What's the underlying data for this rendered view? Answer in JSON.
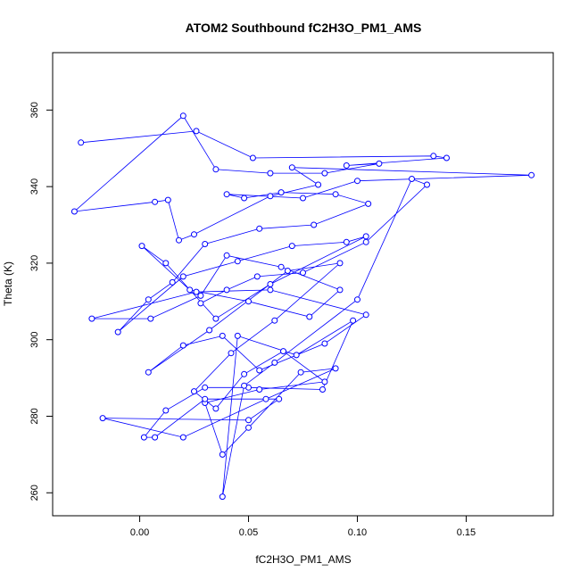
{
  "chart_data": {
    "type": "line",
    "title": "ATOM2 Southbound fC2H3O_PM1_AMS",
    "xlabel": "fC2H3O_PM1_AMS",
    "ylabel": "Theta (K)",
    "xlim": [
      -0.04,
      0.19
    ],
    "ylim": [
      254,
      375
    ],
    "xticks": [
      0.0,
      0.05,
      0.1,
      0.15
    ],
    "xtick_labels": [
      "0.00",
      "0.05",
      "0.10",
      "0.15"
    ],
    "yticks": [
      260,
      280,
      300,
      320,
      340,
      360
    ],
    "ytick_labels": [
      "260",
      "280",
      "300",
      "320",
      "340",
      "360"
    ],
    "grid": false,
    "line_color": "#0000ff",
    "marker": "open-circle",
    "series": [
      {
        "x": [
          -0.027,
          0.026,
          0.052,
          0.135,
          0.141,
          0.095,
          0.11,
          0.085,
          0.06,
          0.035,
          0.02,
          -0.03,
          0.007,
          0.013,
          0.018,
          0.025,
          0.06,
          0.082,
          0.07,
          0.18,
          0.1,
          0.075,
          0.04,
          0.048,
          0.065,
          0.09,
          0.105,
          0.08,
          0.055,
          0.03,
          0.015,
          0.004,
          -0.01,
          0.02,
          0.045,
          0.07,
          0.095,
          0.104,
          0.06,
          0.035,
          0.012,
          0.001,
          0.023,
          0.05,
          0.078,
          0.092,
          0.065,
          0.04,
          0.028,
          0.005,
          -0.022,
          0.026,
          0.06,
          0.104,
          0.085,
          0.055,
          0.038,
          0.02,
          0.004,
          0.032,
          0.068,
          0.092,
          0.062,
          0.042,
          0.025,
          0.035,
          0.048,
          0.066,
          0.085,
          0.055,
          0.03,
          0.038,
          0.05,
          0.074,
          0.09,
          0.058,
          0.02,
          -0.017,
          0.05,
          0.064,
          0.03,
          0.007,
          0.002,
          0.012,
          0.03,
          0.05,
          0.084,
          0.098,
          0.072,
          0.045,
          0.038,
          0.048,
          0.062,
          0.1,
          0.125,
          0.132,
          0.104,
          0.075,
          0.054,
          0.04,
          0.028
        ],
        "y": [
          351.5,
          354.5,
          347.5,
          348.0,
          347.5,
          345.5,
          346.0,
          343.5,
          343.5,
          344.5,
          358.5,
          333.5,
          336.0,
          336.5,
          326.0,
          327.5,
          337.5,
          340.5,
          345.0,
          343.0,
          341.5,
          337.0,
          338.0,
          337.0,
          338.5,
          338.0,
          335.5,
          330.0,
          329.0,
          325.0,
          315.0,
          310.5,
          302.0,
          316.5,
          320.5,
          324.5,
          325.5,
          327.0,
          314.5,
          305.5,
          320.0,
          324.5,
          313.0,
          310.0,
          306.0,
          313.0,
          319.0,
          322.0,
          311.5,
          305.5,
          305.5,
          312.5,
          313.0,
          306.5,
          299.0,
          292.0,
          301.0,
          298.5,
          291.5,
          302.5,
          318.0,
          320.0,
          305.0,
          296.5,
          286.5,
          282.0,
          291.0,
          297.0,
          289.0,
          287.0,
          283.5,
          270.0,
          277.0,
          291.5,
          292.5,
          284.5,
          274.5,
          279.5,
          279.0,
          284.5,
          284.5,
          274.5,
          274.5,
          281.5,
          287.5,
          287.5,
          287.0,
          305.0,
          296.0,
          301.0,
          259.0,
          288.0,
          294.0,
          310.5,
          342.0,
          340.5,
          325.5,
          317.5,
          316.5,
          313.0,
          309.5
        ]
      }
    ]
  }
}
